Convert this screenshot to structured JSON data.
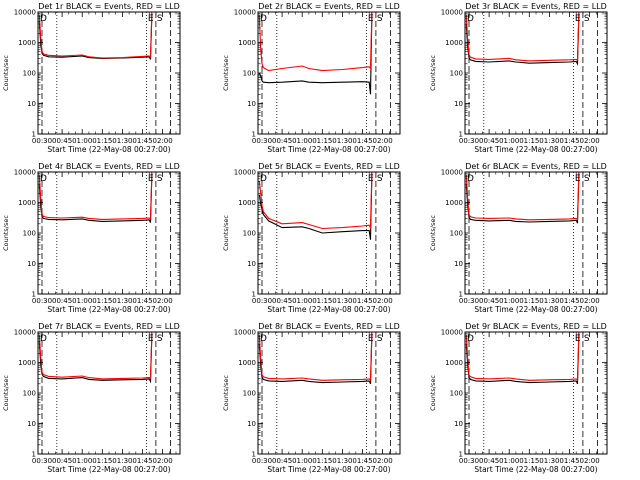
{
  "figure": {
    "background": "#ffffff",
    "axis_color": "#000000"
  },
  "chart_data": [
    {
      "type": "line",
      "title": "Det 1r BLACK = Events, RED = LLD",
      "xlabel": "Start Time (22-May-08 00:27:00)",
      "ylabel": "Counts/sec",
      "yscale": "log",
      "ylim": [
        1,
        10000
      ],
      "xlim": [
        "00:27",
        "02:13"
      ],
      "xticks": [
        "00:30",
        "00:45",
        "01:00",
        "01:15",
        "01:30",
        "01:45",
        "02:00"
      ],
      "yticks": [
        "1",
        "10",
        "100",
        "1000",
        "10000"
      ],
      "markers": [
        "D",
        "E",
        "S"
      ],
      "dotted_lines_at": [
        "00:41",
        "01:48"
      ],
      "dashed_lines_at": [
        "00:30",
        "01:55",
        "02:06"
      ],
      "series": [
        {
          "color": "#000000",
          "x": [
            "00:28",
            "00:29",
            "00:30",
            "00:31",
            "00:35",
            "00:45",
            "01:00",
            "01:05",
            "01:15",
            "01:30",
            "01:45",
            "01:50",
            "01:51",
            "01:52"
          ],
          "y": [
            5000,
            900,
            450,
            380,
            340,
            330,
            360,
            320,
            300,
            310,
            330,
            340,
            280,
            9000
          ]
        },
        {
          "color": "#ff0000",
          "x": [
            "00:28",
            "00:29",
            "00:30",
            "00:31",
            "00:35",
            "00:45",
            "01:00",
            "01:05",
            "01:15",
            "01:30",
            "01:45",
            "01:50",
            "01:51",
            "01:52"
          ],
          "y": [
            8000,
            1500,
            520,
            420,
            380,
            360,
            390,
            340,
            310,
            320,
            350,
            360,
            330,
            10000
          ]
        }
      ]
    },
    {
      "type": "line",
      "title": "Det 2r BLACK = Events, RED = LLD",
      "xlabel": "Start Time (22-May-08 00:27:00)",
      "ylabel": "Counts/sec",
      "yscale": "log",
      "ylim": [
        1,
        10000
      ],
      "xlim": [
        "00:27",
        "02:13"
      ],
      "xticks": [
        "00:30",
        "00:45",
        "01:00",
        "01:15",
        "01:30",
        "01:45",
        "02:00"
      ],
      "yticks": [
        "1",
        "10",
        "100",
        "1000",
        "10000"
      ],
      "markers": [
        "D",
        "E",
        "S"
      ],
      "dotted_lines_at": [
        "00:41",
        "01:48"
      ],
      "dashed_lines_at": [
        "00:30",
        "01:55",
        "02:06"
      ],
      "series": [
        {
          "color": "#000000",
          "x": [
            "00:28",
            "00:29",
            "00:30",
            "00:31",
            "00:35",
            "00:45",
            "01:00",
            "01:05",
            "01:15",
            "01:30",
            "01:45",
            "01:50",
            "01:51",
            "01:52"
          ],
          "y": [
            100,
            80,
            55,
            50,
            48,
            50,
            55,
            50,
            48,
            50,
            52,
            50,
            20,
            9000
          ]
        },
        {
          "color": "#ff0000",
          "x": [
            "00:28",
            "00:29",
            "00:30",
            "00:31",
            "00:35",
            "00:45",
            "01:00",
            "01:05",
            "01:15",
            "01:30",
            "01:45",
            "01:50",
            "01:51",
            "01:52"
          ],
          "y": [
            8000,
            600,
            200,
            150,
            120,
            140,
            170,
            140,
            120,
            130,
            150,
            160,
            140,
            10000
          ]
        }
      ]
    },
    {
      "type": "line",
      "title": "Det 3r BLACK = Events, RED = LLD",
      "xlabel": "Start Time (22-May-08 00:27:00)",
      "ylabel": "Counts/sec",
      "yscale": "log",
      "ylim": [
        1,
        10000
      ],
      "xlim": [
        "00:27",
        "02:13"
      ],
      "xticks": [
        "00:30",
        "00:45",
        "01:00",
        "01:15",
        "01:30",
        "01:45",
        "02:00"
      ],
      "yticks": [
        "1",
        "10",
        "100",
        "1000",
        "10000"
      ],
      "markers": [
        "D",
        "E",
        "S"
      ],
      "dotted_lines_at": [
        "00:41",
        "01:48"
      ],
      "dashed_lines_at": [
        "00:30",
        "01:55",
        "02:06"
      ],
      "series": [
        {
          "color": "#000000",
          "x": [
            "00:28",
            "00:29",
            "00:30",
            "00:31",
            "00:35",
            "00:45",
            "01:00",
            "01:05",
            "01:15",
            "01:30",
            "01:45",
            "01:50",
            "01:51",
            "01:52"
          ],
          "y": [
            4000,
            700,
            320,
            270,
            240,
            230,
            250,
            230,
            210,
            220,
            230,
            240,
            200,
            9000
          ]
        },
        {
          "color": "#ff0000",
          "x": [
            "00:28",
            "00:29",
            "00:30",
            "00:31",
            "00:35",
            "00:45",
            "01:00",
            "01:05",
            "01:15",
            "01:30",
            "01:45",
            "01:50",
            "01:51",
            "01:52"
          ],
          "y": [
            8000,
            1200,
            400,
            330,
            290,
            280,
            300,
            270,
            250,
            260,
            270,
            280,
            260,
            10000
          ]
        }
      ]
    },
    {
      "type": "line",
      "title": "Det 4r BLACK = Events, RED = LLD",
      "xlabel": "Start Time (22-May-08 00:27:00)",
      "ylabel": "Counts/sec",
      "yscale": "log",
      "ylim": [
        1,
        10000
      ],
      "xlim": [
        "00:27",
        "02:13"
      ],
      "xticks": [
        "00:30",
        "00:45",
        "01:00",
        "01:15",
        "01:30",
        "01:45",
        "02:00"
      ],
      "yticks": [
        "1",
        "10",
        "100",
        "1000",
        "10000"
      ],
      "markers": [
        "D",
        "E",
        "S"
      ],
      "dotted_lines_at": [
        "00:41",
        "01:48"
      ],
      "dashed_lines_at": [
        "00:30",
        "01:55",
        "02:06"
      ],
      "series": [
        {
          "color": "#000000",
          "x": [
            "00:28",
            "00:29",
            "00:30",
            "00:31",
            "00:35",
            "00:45",
            "01:00",
            "01:05",
            "01:15",
            "01:30",
            "01:45",
            "01:50",
            "01:51",
            "01:52"
          ],
          "y": [
            4000,
            800,
            350,
            300,
            280,
            270,
            290,
            260,
            240,
            250,
            260,
            270,
            220,
            9000
          ]
        },
        {
          "color": "#ff0000",
          "x": [
            "00:28",
            "00:29",
            "00:30",
            "00:31",
            "00:35",
            "00:45",
            "01:00",
            "01:05",
            "01:15",
            "01:30",
            "01:45",
            "01:50",
            "01:51",
            "01:52"
          ],
          "y": [
            8000,
            1400,
            420,
            350,
            320,
            310,
            330,
            300,
            280,
            290,
            300,
            310,
            290,
            10000
          ]
        }
      ]
    },
    {
      "type": "line",
      "title": "Det 5r BLACK = Events, RED = LLD",
      "xlabel": "Start Time (22-May-08 00:27:00)",
      "ylabel": "Counts/sec",
      "yscale": "log",
      "ylim": [
        1,
        10000
      ],
      "xlim": [
        "00:27",
        "02:13"
      ],
      "xticks": [
        "00:30",
        "00:45",
        "01:00",
        "01:15",
        "01:30",
        "01:45",
        "02:00"
      ],
      "yticks": [
        "1",
        "10",
        "100",
        "1000",
        "10000"
      ],
      "markers": [
        "D",
        "E",
        "S"
      ],
      "dotted_lines_at": [
        "00:41",
        "01:48"
      ],
      "dashed_lines_at": [
        "00:30",
        "01:55",
        "02:06"
      ],
      "series": [
        {
          "color": "#000000",
          "x": [
            "00:28",
            "00:29",
            "00:30",
            "00:31",
            "00:35",
            "00:45",
            "01:00",
            "01:05",
            "01:15",
            "01:30",
            "01:45",
            "01:50",
            "01:51",
            "01:52"
          ],
          "y": [
            1800,
            900,
            600,
            400,
            250,
            150,
            160,
            140,
            100,
            110,
            120,
            120,
            60,
            9000
          ]
        },
        {
          "color": "#ff0000",
          "x": [
            "00:28",
            "00:29",
            "00:30",
            "00:31",
            "00:35",
            "00:45",
            "01:00",
            "01:05",
            "01:15",
            "01:30",
            "01:45",
            "01:50",
            "01:51",
            "01:52"
          ],
          "y": [
            5000,
            2000,
            800,
            500,
            300,
            200,
            220,
            190,
            140,
            150,
            170,
            180,
            150,
            10000
          ]
        }
      ]
    },
    {
      "type": "line",
      "title": "Det 6r BLACK = Events, RED = LLD",
      "xlabel": "Start Time (22-May-08 00:27:00)",
      "ylabel": "Counts/sec",
      "yscale": "log",
      "ylim": [
        1,
        10000
      ],
      "xlim": [
        "00:27",
        "02:13"
      ],
      "xticks": [
        "00:30",
        "00:45",
        "01:00",
        "01:15",
        "01:30",
        "01:45",
        "02:00"
      ],
      "yticks": [
        "1",
        "10",
        "100",
        "1000",
        "10000"
      ],
      "markers": [
        "D",
        "E",
        "S"
      ],
      "dotted_lines_at": [
        "00:41",
        "01:48"
      ],
      "dashed_lines_at": [
        "00:30",
        "01:55",
        "02:06"
      ],
      "series": [
        {
          "color": "#000000",
          "x": [
            "00:28",
            "00:29",
            "00:30",
            "00:31",
            "00:35",
            "00:45",
            "01:00",
            "01:05",
            "01:15",
            "01:30",
            "01:45",
            "01:50",
            "01:51",
            "01:52"
          ],
          "y": [
            4000,
            800,
            330,
            280,
            260,
            250,
            260,
            240,
            230,
            240,
            250,
            260,
            210,
            9000
          ]
        },
        {
          "color": "#ff0000",
          "x": [
            "00:28",
            "00:29",
            "00:30",
            "00:31",
            "00:35",
            "00:45",
            "01:00",
            "01:05",
            "01:15",
            "01:30",
            "01:45",
            "01:50",
            "01:51",
            "01:52"
          ],
          "y": [
            8000,
            1300,
            400,
            340,
            310,
            300,
            310,
            290,
            270,
            280,
            290,
            300,
            280,
            10000
          ]
        }
      ]
    },
    {
      "type": "line",
      "title": "Det 7r BLACK = Events, RED = LLD",
      "xlabel": "Start Time (22-May-08 00:27:00)",
      "ylabel": "Counts/sec",
      "yscale": "log",
      "ylim": [
        1,
        10000
      ],
      "xlim": [
        "00:27",
        "02:13"
      ],
      "xticks": [
        "00:30",
        "00:45",
        "01:00",
        "01:15",
        "01:30",
        "01:45",
        "02:00"
      ],
      "yticks": [
        "1",
        "10",
        "100",
        "1000",
        "10000"
      ],
      "markers": [
        "D",
        "E",
        "S"
      ],
      "dotted_lines_at": [
        "00:41",
        "01:48"
      ],
      "dashed_lines_at": [
        "00:30",
        "01:55",
        "02:06"
      ],
      "series": [
        {
          "color": "#000000",
          "x": [
            "00:28",
            "00:29",
            "00:30",
            "00:31",
            "00:35",
            "00:45",
            "01:00",
            "01:05",
            "01:15",
            "01:30",
            "01:45",
            "01:50",
            "01:51",
            "01:52"
          ],
          "y": [
            5000,
            900,
            420,
            350,
            300,
            290,
            320,
            280,
            260,
            270,
            280,
            290,
            240,
            9000
          ]
        },
        {
          "color": "#ff0000",
          "x": [
            "00:28",
            "00:29",
            "00:30",
            "00:31",
            "00:35",
            "00:45",
            "01:00",
            "01:05",
            "01:15",
            "01:30",
            "01:45",
            "01:50",
            "01:51",
            "01:52"
          ],
          "y": [
            8000,
            1500,
            480,
            400,
            350,
            330,
            360,
            320,
            290,
            300,
            310,
            320,
            300,
            10000
          ]
        }
      ]
    },
    {
      "type": "line",
      "title": "Det 8r BLACK = Events, RED = LLD",
      "xlabel": "Start Time (22-May-08 00:27:00)",
      "ylabel": "Counts/sec",
      "yscale": "log",
      "ylim": [
        1,
        10000
      ],
      "xlim": [
        "00:27",
        "02:13"
      ],
      "xticks": [
        "00:30",
        "00:45",
        "01:00",
        "01:15",
        "01:30",
        "01:45",
        "02:00"
      ],
      "yticks": [
        "1",
        "10",
        "100",
        "1000",
        "10000"
      ],
      "markers": [
        "D",
        "E",
        "S"
      ],
      "dotted_lines_at": [
        "00:41",
        "01:48"
      ],
      "dashed_lines_at": [
        "00:30",
        "01:55",
        "02:06"
      ],
      "series": [
        {
          "color": "#000000",
          "x": [
            "00:28",
            "00:29",
            "00:30",
            "00:31",
            "00:35",
            "00:45",
            "01:00",
            "01:05",
            "01:15",
            "01:30",
            "01:45",
            "01:50",
            "01:51",
            "01:52"
          ],
          "y": [
            4000,
            800,
            330,
            280,
            250,
            240,
            260,
            240,
            220,
            230,
            240,
            250,
            200,
            9000
          ]
        },
        {
          "color": "#ff0000",
          "x": [
            "00:28",
            "00:29",
            "00:30",
            "00:31",
            "00:35",
            "00:45",
            "01:00",
            "01:05",
            "01:15",
            "01:30",
            "01:45",
            "01:50",
            "01:51",
            "01:52"
          ],
          "y": [
            8000,
            1300,
            400,
            340,
            300,
            290,
            310,
            290,
            260,
            270,
            280,
            290,
            270,
            10000
          ]
        }
      ]
    },
    {
      "type": "line",
      "title": "Det 9r BLACK = Events, RED = LLD",
      "xlabel": "Start Time (22-May-08 00:27:00)",
      "ylabel": "Counts/sec",
      "yscale": "log",
      "ylim": [
        1,
        10000
      ],
      "xlim": [
        "00:27",
        "02:13"
      ],
      "xticks": [
        "00:30",
        "00:45",
        "01:00",
        "01:15",
        "01:30",
        "01:45",
        "02:00"
      ],
      "yticks": [
        "1",
        "10",
        "100",
        "1000",
        "10000"
      ],
      "markers": [
        "D",
        "E",
        "S"
      ],
      "dotted_lines_at": [
        "00:41",
        "01:48"
      ],
      "dashed_lines_at": [
        "00:30",
        "01:55",
        "02:06"
      ],
      "series": [
        {
          "color": "#000000",
          "x": [
            "00:28",
            "00:29",
            "00:30",
            "00:31",
            "00:35",
            "00:45",
            "01:00",
            "01:05",
            "01:15",
            "01:30",
            "01:45",
            "01:50",
            "01:51",
            "01:52"
          ],
          "y": [
            4000,
            800,
            320,
            280,
            250,
            240,
            260,
            240,
            220,
            230,
            240,
            250,
            200,
            9000
          ]
        },
        {
          "color": "#ff0000",
          "x": [
            "00:28",
            "00:29",
            "00:30",
            "00:31",
            "00:35",
            "00:45",
            "01:00",
            "01:05",
            "01:15",
            "01:30",
            "01:45",
            "01:50",
            "01:51",
            "01:52"
          ],
          "y": [
            8000,
            1300,
            390,
            340,
            300,
            290,
            310,
            290,
            260,
            270,
            280,
            290,
            270,
            10000
          ]
        }
      ]
    }
  ]
}
